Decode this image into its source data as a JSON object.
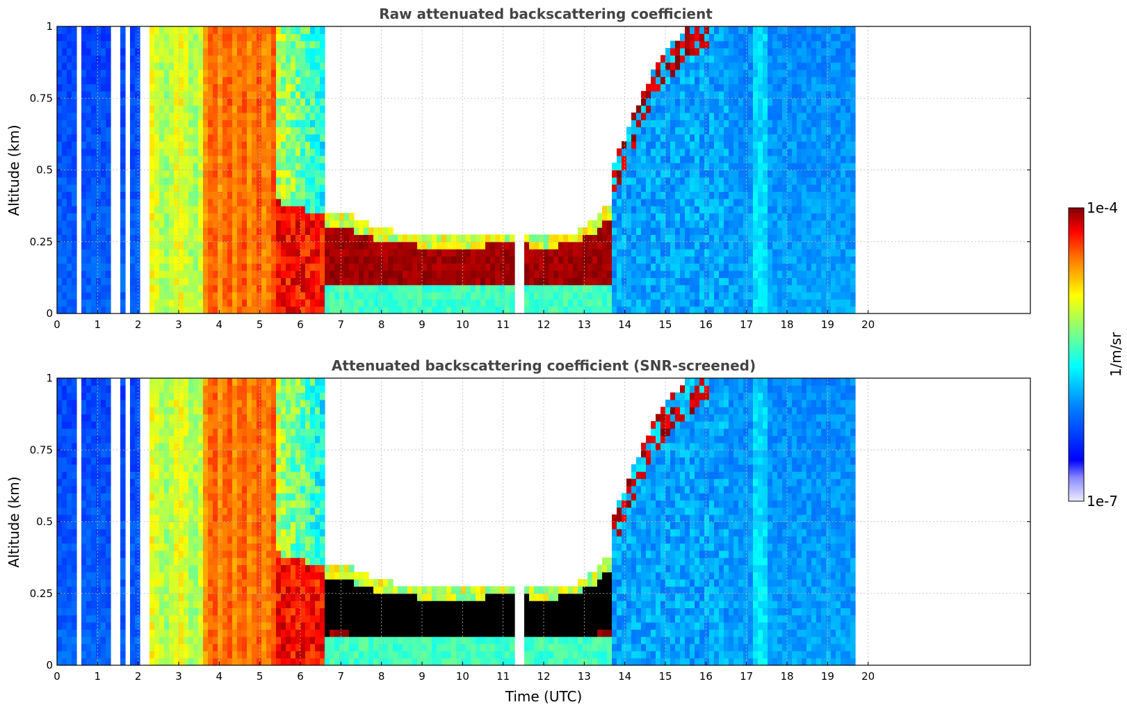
{
  "chart_data": [
    {
      "type": "heatmap",
      "title": "Raw attenuated backscattering coefficient",
      "xlabel": "",
      "ylabel": "Altitude (km)",
      "xlim": [
        0,
        24
      ],
      "ylim": [
        0,
        1
      ],
      "data_extent_x": [
        0,
        19.65
      ],
      "x_ticks": [
        "0",
        "1",
        "2",
        "3",
        "4",
        "5",
        "6",
        "7",
        "8",
        "9",
        "10",
        "11",
        "12",
        "13",
        "14",
        "15",
        "16",
        "17",
        "18",
        "19",
        "20"
      ],
      "y_ticks": [
        "0",
        "0.25",
        "0.5",
        "0.75",
        "1"
      ],
      "grid": true,
      "screened": false,
      "features": {
        "boundary_layer_top_km": [
          {
            "t": 5.3,
            "z": 0.38
          },
          {
            "t": 6.5,
            "z": 0.33
          },
          {
            "t": 7.0,
            "z": 0.34
          },
          {
            "t": 8.0,
            "z": 0.28
          },
          {
            "t": 9.0,
            "z": 0.26
          },
          {
            "t": 10.0,
            "z": 0.26
          },
          {
            "t": 11.0,
            "z": 0.27
          },
          {
            "t": 12.0,
            "z": 0.26
          },
          {
            "t": 12.7,
            "z": 0.27
          },
          {
            "t": 13.2,
            "z": 0.32
          },
          {
            "t": 13.6,
            "z": 0.38
          },
          {
            "t": 14.0,
            "z": 0.5
          },
          {
            "t": 14.4,
            "z": 0.65
          },
          {
            "t": 15.0,
            "z": 0.8
          },
          {
            "t": 16.0,
            "z": 0.92
          }
        ],
        "data_gaps_utc": [
          0.45,
          1.3,
          1.42,
          1.7,
          2.1,
          11.35
        ]
      }
    },
    {
      "type": "heatmap",
      "title": "Attenuated backscattering coefficient (SNR-screened)",
      "xlabel": "Time (UTC)",
      "ylabel": "Altitude (km)",
      "xlim": [
        0,
        24
      ],
      "ylim": [
        0,
        1
      ],
      "data_extent_x": [
        0,
        19.65
      ],
      "x_ticks": [
        "0",
        "1",
        "2",
        "3",
        "4",
        "5",
        "6",
        "7",
        "8",
        "9",
        "10",
        "11",
        "12",
        "13",
        "14",
        "15",
        "16",
        "17",
        "18",
        "19",
        "20"
      ],
      "y_ticks": [
        "0",
        "0.25",
        "0.5",
        "0.75",
        "1"
      ],
      "grid": true,
      "screened": true
    }
  ],
  "colorbar": {
    "label": "1/m/sr",
    "max_label": "1e-4",
    "min_label": "1e-7",
    "scale": "log",
    "range": [
      1e-07,
      0.0001
    ],
    "colormap": "jet"
  }
}
